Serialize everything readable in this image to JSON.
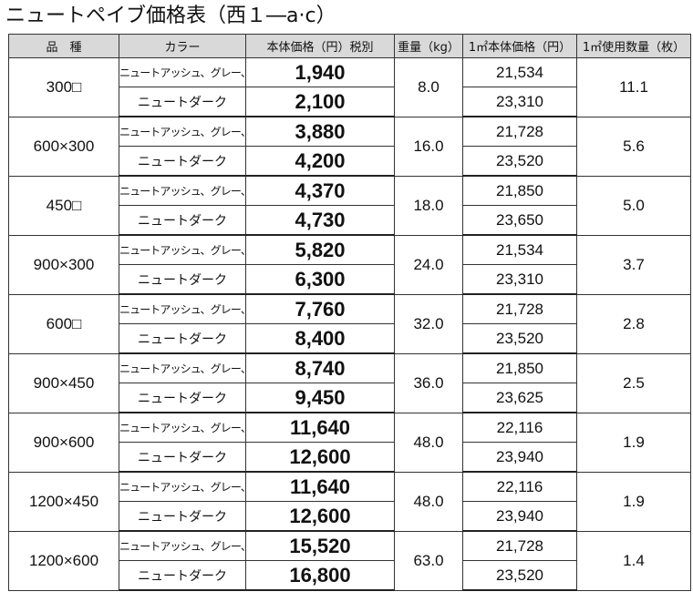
{
  "title": "ニュートペイブ価格表（西１―a·c）",
  "headers": [
    "品　種",
    "カラー",
    "本体価格（円）税別",
    "重量（kg）",
    "1㎡本体価格（円）",
    "1㎡使用数量（枚）"
  ],
  "rows": [
    {
      "hinshu": "300□",
      "weight": "8.0",
      "qty": "11.1",
      "items": [
        {
          "color": "ニュートアッシュ、グレー、ペブル",
          "price": "1,940",
          "unit": "21,534"
        },
        {
          "color": "ニュートダーク",
          "price": "2,100",
          "unit": "23,310"
        }
      ]
    },
    {
      "hinshu": "600×300",
      "weight": "16.0",
      "qty": "5.6",
      "items": [
        {
          "color": "ニュートアッシュ、グレー、ペブル",
          "price": "3,880",
          "unit": "21,728"
        },
        {
          "color": "ニュートダーク",
          "price": "4,200",
          "unit": "23,520"
        }
      ]
    },
    {
      "hinshu": "450□",
      "weight": "18.0",
      "qty": "5.0",
      "items": [
        {
          "color": "ニュートアッシュ、グレー、ペブル",
          "price": "4,370",
          "unit": "21,850"
        },
        {
          "color": "ニュートダーク",
          "price": "4,730",
          "unit": "23,650"
        }
      ]
    },
    {
      "hinshu": "900×300",
      "weight": "24.0",
      "qty": "3.7",
      "items": [
        {
          "color": "ニュートアッシュ、グレー、ペブル",
          "price": "5,820",
          "unit": "21,534"
        },
        {
          "color": "ニュートダーク",
          "price": "6,300",
          "unit": "23,310"
        }
      ]
    },
    {
      "hinshu": "600□",
      "weight": "32.0",
      "qty": "2.8",
      "items": [
        {
          "color": "ニュートアッシュ、グレー、ペブル",
          "price": "7,760",
          "unit": "21,728"
        },
        {
          "color": "ニュートダーク",
          "price": "8,400",
          "unit": "23,520"
        }
      ]
    },
    {
      "hinshu": "900×450",
      "weight": "36.0",
      "qty": "2.5",
      "items": [
        {
          "color": "ニュートアッシュ、グレー、ペブル",
          "price": "8,740",
          "unit": "21,850"
        },
        {
          "color": "ニュートダーク",
          "price": "9,450",
          "unit": "23,625"
        }
      ]
    },
    {
      "hinshu": "900×600",
      "weight": "48.0",
      "qty": "1.9",
      "items": [
        {
          "color": "ニュートアッシュ、グレー、ペブル",
          "price": "11,640",
          "unit": "22,116"
        },
        {
          "color": "ニュートダーク",
          "price": "12,600",
          "unit": "23,940"
        }
      ]
    },
    {
      "hinshu": "1200×450",
      "weight": "48.0",
      "qty": "1.9",
      "items": [
        {
          "color": "ニュートアッシュ、グレー、ペブル",
          "price": "11,640",
          "unit": "22,116"
        },
        {
          "color": "ニュートダーク",
          "price": "12,600",
          "unit": "23,940"
        }
      ]
    },
    {
      "hinshu": "1200×600",
      "weight": "63.0",
      "qty": "1.4",
      "items": [
        {
          "color": "ニュートアッシュ、グレー、ペブル",
          "price": "15,520",
          "unit": "21,728"
        },
        {
          "color": "ニュートダーク",
          "price": "16,800",
          "unit": "23,520"
        }
      ]
    }
  ],
  "colors": {
    "header_bg": "#d9d9d9",
    "border": "#333333"
  }
}
